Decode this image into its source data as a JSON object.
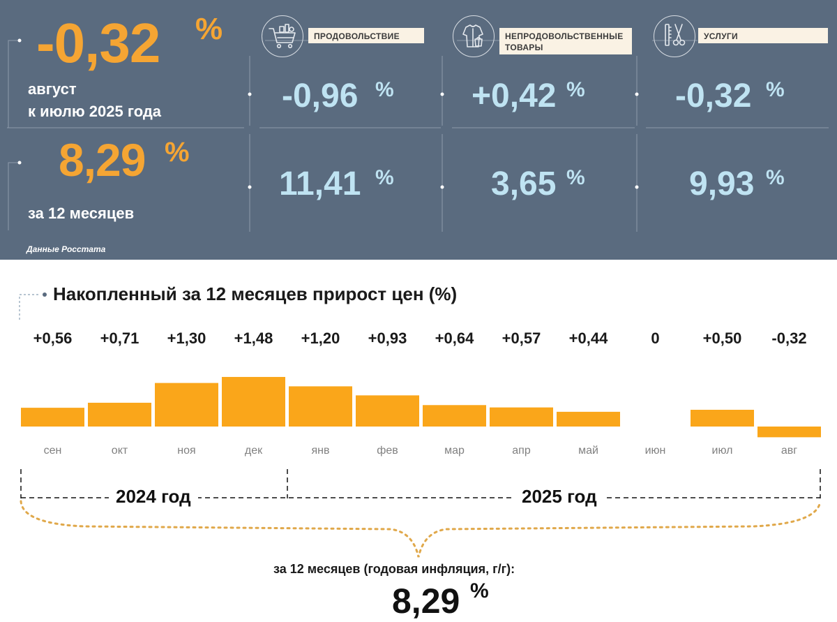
{
  "header": {
    "monthly": {
      "value": "-0,32",
      "unit": "%",
      "caption_line1": "август",
      "caption_line2": "к июлю 2025 года"
    },
    "yearly": {
      "value": "8,29",
      "unit": "%",
      "caption": "за 12 месяцев"
    },
    "categories": [
      {
        "label": "ПРОДОВОЛЬСТВИЕ",
        "icon": "shopping-cart-icon",
        "monthly": "-0,96",
        "yearly": "11,41",
        "unit": "%"
      },
      {
        "label": "НЕПРОДОВОЛЬСТВЕННЫЕ ТОВАРЫ",
        "icon": "clothes-icon",
        "monthly": "+0,42",
        "yearly": "3,65",
        "unit": "%"
      },
      {
        "label": "УСЛУГИ",
        "icon": "scissors-comb-icon",
        "monthly": "-0,32",
        "yearly": "9,93",
        "unit": "%"
      }
    ],
    "source": "Данные Росстата"
  },
  "colors": {
    "panel": "#5a6b7f",
    "accent": "#f5a533",
    "value_light": "#bfe3f2",
    "bar": "#faa61a"
  },
  "chart_data": {
    "type": "bar",
    "title": "Накопленный за 12 месяцев прирост цен (%)",
    "categories": [
      "сен",
      "окт",
      "ноя",
      "дек",
      "янв",
      "фев",
      "мар",
      "апр",
      "май",
      "июн",
      "июл",
      "авг"
    ],
    "values": [
      0.56,
      0.71,
      1.3,
      1.48,
      1.2,
      0.93,
      0.64,
      0.57,
      0.44,
      0,
      0.5,
      -0.32
    ],
    "labels": [
      "+0,56",
      "+0,71",
      "+1,30",
      "+1,48",
      "+1,20",
      "+0,93",
      "+0,64",
      "+0,57",
      "+0,44",
      "0",
      "+0,50",
      "-0,32"
    ],
    "groups": [
      {
        "label": "2024 год",
        "from": "сен",
        "to": "дек"
      },
      {
        "label": "2025 год",
        "from": "янв",
        "to": "авг"
      }
    ],
    "total_caption": "за 12 месяцев (годовая инфляция, г/г):",
    "total_value": "8,29",
    "total_unit": "%"
  }
}
